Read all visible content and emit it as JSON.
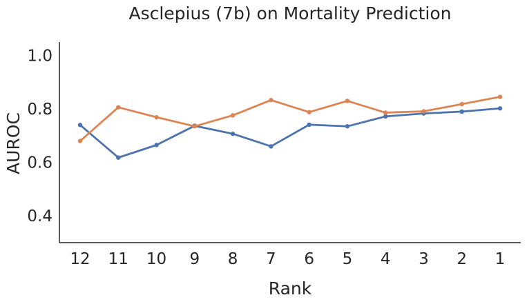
{
  "chart_data": {
    "type": "line",
    "title": "Asclepius (7b) on Mortality Prediction",
    "xlabel": "Rank",
    "ylabel": "AUROC",
    "categories": [
      "12",
      "11",
      "10",
      "9",
      "8",
      "7",
      "6",
      "5",
      "4",
      "3",
      "2",
      "1"
    ],
    "y_ticks": [
      0.4,
      0.6,
      0.8,
      1.0
    ],
    "ylim": [
      0.3,
      1.05
    ],
    "grid": false,
    "series": [
      {
        "color": "#4c72b0",
        "values": [
          0.74,
          0.618,
          0.665,
          0.737,
          0.707,
          0.66,
          0.741,
          0.735,
          0.772,
          0.783,
          0.79,
          0.802
        ]
      },
      {
        "color": "#dd8452",
        "values": [
          0.68,
          0.806,
          0.769,
          0.735,
          0.776,
          0.833,
          0.788,
          0.83,
          0.786,
          0.791,
          0.818,
          0.845
        ]
      }
    ]
  }
}
